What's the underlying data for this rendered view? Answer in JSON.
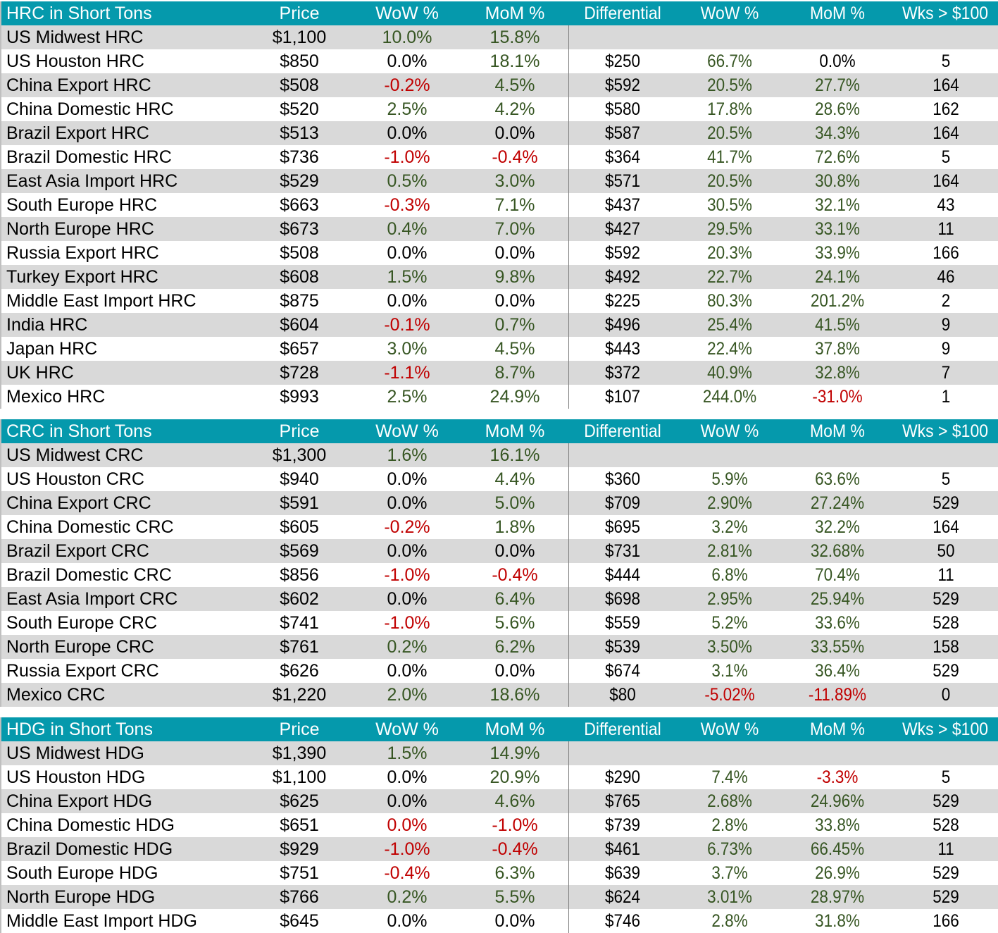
{
  "colors": {
    "header_bg": "#0599ac",
    "row_gray": "#d9d9d9",
    "positive": "#375623",
    "negative": "#c00000",
    "neutral": "#000000"
  },
  "columns": {
    "price": "Price",
    "wow": "WoW %",
    "mom": "MoM %",
    "differential": "Differential",
    "wow2": "WoW %",
    "mom2": "MoM %",
    "wks": "Wks > $100"
  },
  "sections": [
    {
      "title": "HRC in Short Tons",
      "rows": [
        {
          "label": "US Midwest HRC",
          "price": "$1,100",
          "wow": "10.0%",
          "mom": "15.8%",
          "diff": "",
          "wow2": "",
          "mom2": "",
          "wks": ""
        },
        {
          "label": "US Houston HRC",
          "price": "$850",
          "wow": "0.0%",
          "mom": "18.1%",
          "diff": "$250",
          "wow2": "66.7%",
          "mom2": "0.0%",
          "wks": "5"
        },
        {
          "label": "China Export HRC",
          "price": "$508",
          "wow": "-0.2%",
          "mom": "4.5%",
          "diff": "$592",
          "wow2": "20.5%",
          "mom2": "27.7%",
          "wks": "164"
        },
        {
          "label": "China Domestic HRC",
          "price": "$520",
          "wow": "2.5%",
          "mom": "4.2%",
          "diff": "$580",
          "wow2": "17.8%",
          "mom2": "28.6%",
          "wks": "162"
        },
        {
          "label": "Brazil Export HRC",
          "price": "$513",
          "wow": "0.0%",
          "mom": "0.0%",
          "diff": "$587",
          "wow2": "20.5%",
          "mom2": "34.3%",
          "wks": "164"
        },
        {
          "label": "Brazil Domestic HRC",
          "price": "$736",
          "wow": "-1.0%",
          "mom": "-0.4%",
          "diff": "$364",
          "wow2": "41.7%",
          "mom2": "72.6%",
          "wks": "5"
        },
        {
          "label": "East Asia Import HRC",
          "price": "$529",
          "wow": "0.5%",
          "mom": "3.0%",
          "diff": "$571",
          "wow2": "20.5%",
          "mom2": "30.8%",
          "wks": "164"
        },
        {
          "label": "South Europe HRC",
          "price": "$663",
          "wow": "-0.3%",
          "mom": "7.1%",
          "diff": "$437",
          "wow2": "30.5%",
          "mom2": "32.1%",
          "wks": "43"
        },
        {
          "label": "North Europe HRC",
          "price": "$673",
          "wow": "0.4%",
          "mom": "7.0%",
          "diff": "$427",
          "wow2": "29.5%",
          "mom2": "33.1%",
          "wks": "11"
        },
        {
          "label": "Russia Export HRC",
          "price": "$508",
          "wow": "0.0%",
          "mom": "0.0%",
          "diff": "$592",
          "wow2": "20.3%",
          "mom2": "33.9%",
          "wks": "166"
        },
        {
          "label": "Turkey Export HRC",
          "price": "$608",
          "wow": "1.5%",
          "mom": "9.8%",
          "diff": "$492",
          "wow2": "22.7%",
          "mom2": "24.1%",
          "wks": "46"
        },
        {
          "label": "Middle East Import HRC",
          "price": "$875",
          "wow": "0.0%",
          "mom": "0.0%",
          "diff": "$225",
          "wow2": "80.3%",
          "mom2": "201.2%",
          "wks": "2"
        },
        {
          "label": "India HRC",
          "price": "$604",
          "wow": "-0.1%",
          "mom": "0.7%",
          "diff": "$496",
          "wow2": "25.4%",
          "mom2": "41.5%",
          "wks": "9"
        },
        {
          "label": "Japan HRC",
          "price": "$657",
          "wow": "3.0%",
          "mom": "4.5%",
          "diff": "$443",
          "wow2": "22.4%",
          "mom2": "37.8%",
          "wks": "9"
        },
        {
          "label": "UK HRC",
          "price": "$728",
          "wow": "-1.1%",
          "mom": "8.7%",
          "diff": "$372",
          "wow2": "40.9%",
          "mom2": "32.8%",
          "wks": "7"
        },
        {
          "label": "Mexico HRC",
          "price": "$993",
          "wow": "2.5%",
          "mom": "24.9%",
          "diff": "$107",
          "wow2": "244.0%",
          "mom2": "-31.0%",
          "wks": "1"
        }
      ]
    },
    {
      "title": "CRC in Short Tons",
      "rows": [
        {
          "label": "US Midwest CRC",
          "price": "$1,300",
          "wow": "1.6%",
          "mom": "16.1%",
          "diff": "",
          "wow2": "",
          "mom2": "",
          "wks": ""
        },
        {
          "label": "US Houston CRC",
          "price": "$940",
          "wow": "0.0%",
          "mom": "4.4%",
          "diff": "$360",
          "wow2": "5.9%",
          "mom2": "63.6%",
          "wks": "5"
        },
        {
          "label": "China Export CRC",
          "price": "$591",
          "wow": "0.0%",
          "mom": "5.0%",
          "diff": "$709",
          "wow2": "2.90%",
          "mom2": "27.24%",
          "wks": "529"
        },
        {
          "label": "China Domestic CRC",
          "price": "$605",
          "wow": "-0.2%",
          "mom": "1.8%",
          "diff": "$695",
          "wow2": "3.2%",
          "mom2": "32.2%",
          "wks": "164"
        },
        {
          "label": "Brazil Export CRC",
          "price": "$569",
          "wow": "0.0%",
          "mom": "0.0%",
          "diff": "$731",
          "wow2": "2.81%",
          "mom2": "32.68%",
          "wks": "50"
        },
        {
          "label": "Brazil Domestic CRC",
          "price": "$856",
          "wow": "-1.0%",
          "mom": "-0.4%",
          "diff": "$444",
          "wow2": "6.8%",
          "mom2": "70.4%",
          "wks": "11"
        },
        {
          "label": "East Asia Import CRC",
          "price": "$602",
          "wow": "0.0%",
          "mom": "6.4%",
          "diff": "$698",
          "wow2": "2.95%",
          "mom2": "25.94%",
          "wks": "529"
        },
        {
          "label": "South Europe CRC",
          "price": "$741",
          "wow": "-1.0%",
          "mom": "5.6%",
          "diff": "$559",
          "wow2": "5.2%",
          "mom2": "33.6%",
          "wks": "528"
        },
        {
          "label": "North Europe CRC",
          "price": "$761",
          "wow": "0.2%",
          "mom": "6.2%",
          "diff": "$539",
          "wow2": "3.50%",
          "mom2": "33.55%",
          "wks": "158"
        },
        {
          "label": "Russia Export CRC",
          "price": "$626",
          "wow": "0.0%",
          "mom": "0.0%",
          "diff": "$674",
          "wow2": "3.1%",
          "mom2": "36.4%",
          "wks": "529"
        },
        {
          "label": "Mexico CRC",
          "price": "$1,220",
          "wow": "2.0%",
          "mom": "18.6%",
          "diff": "$80",
          "wow2": "-5.02%",
          "mom2": "-11.89%",
          "wks": "0"
        }
      ]
    },
    {
      "title": "HDG in Short Tons",
      "rows": [
        {
          "label": "US Midwest HDG",
          "price": "$1,390",
          "wow": "1.5%",
          "mom": "14.9%",
          "diff": "",
          "wow2": "",
          "mom2": "",
          "wks": ""
        },
        {
          "label": "US Houston HDG",
          "price": "$1,100",
          "wow": "0.0%",
          "mom": "20.9%",
          "diff": "$290",
          "wow2": "7.4%",
          "mom2": "-3.3%",
          "wks": "5"
        },
        {
          "label": "China Export HDG",
          "price": "$625",
          "wow": "0.0%",
          "mom": "4.6%",
          "diff": "$765",
          "wow2": "2.68%",
          "mom2": "24.96%",
          "wks": "529"
        },
        {
          "label": "China Domestic HDG",
          "price": "$651",
          "wow": "0.0%",
          "wow_neg": true,
          "mom": "-1.0%",
          "diff": "$739",
          "wow2": "2.8%",
          "mom2": "33.8%",
          "wks": "528"
        },
        {
          "label": "Brazil Domestic HDG",
          "price": "$929",
          "wow": "-1.0%",
          "mom": "-0.4%",
          "diff": "$461",
          "wow2": "6.73%",
          "mom2": "66.45%",
          "wks": "11"
        },
        {
          "label": "South Europe HDG",
          "price": "$751",
          "wow": "-0.4%",
          "mom": "6.3%",
          "diff": "$639",
          "wow2": "3.7%",
          "mom2": "26.9%",
          "wks": "529"
        },
        {
          "label": "North Europe HDG",
          "price": "$766",
          "wow": "0.2%",
          "mom": "5.5%",
          "diff": "$624",
          "wow2": "3.01%",
          "mom2": "28.97%",
          "wks": "529"
        },
        {
          "label": "Middle East Import HDG",
          "price": "$645",
          "wow": "0.0%",
          "mom": "0.0%",
          "diff": "$746",
          "wow2": "2.8%",
          "mom2": "31.8%",
          "wks": "166"
        }
      ]
    }
  ]
}
